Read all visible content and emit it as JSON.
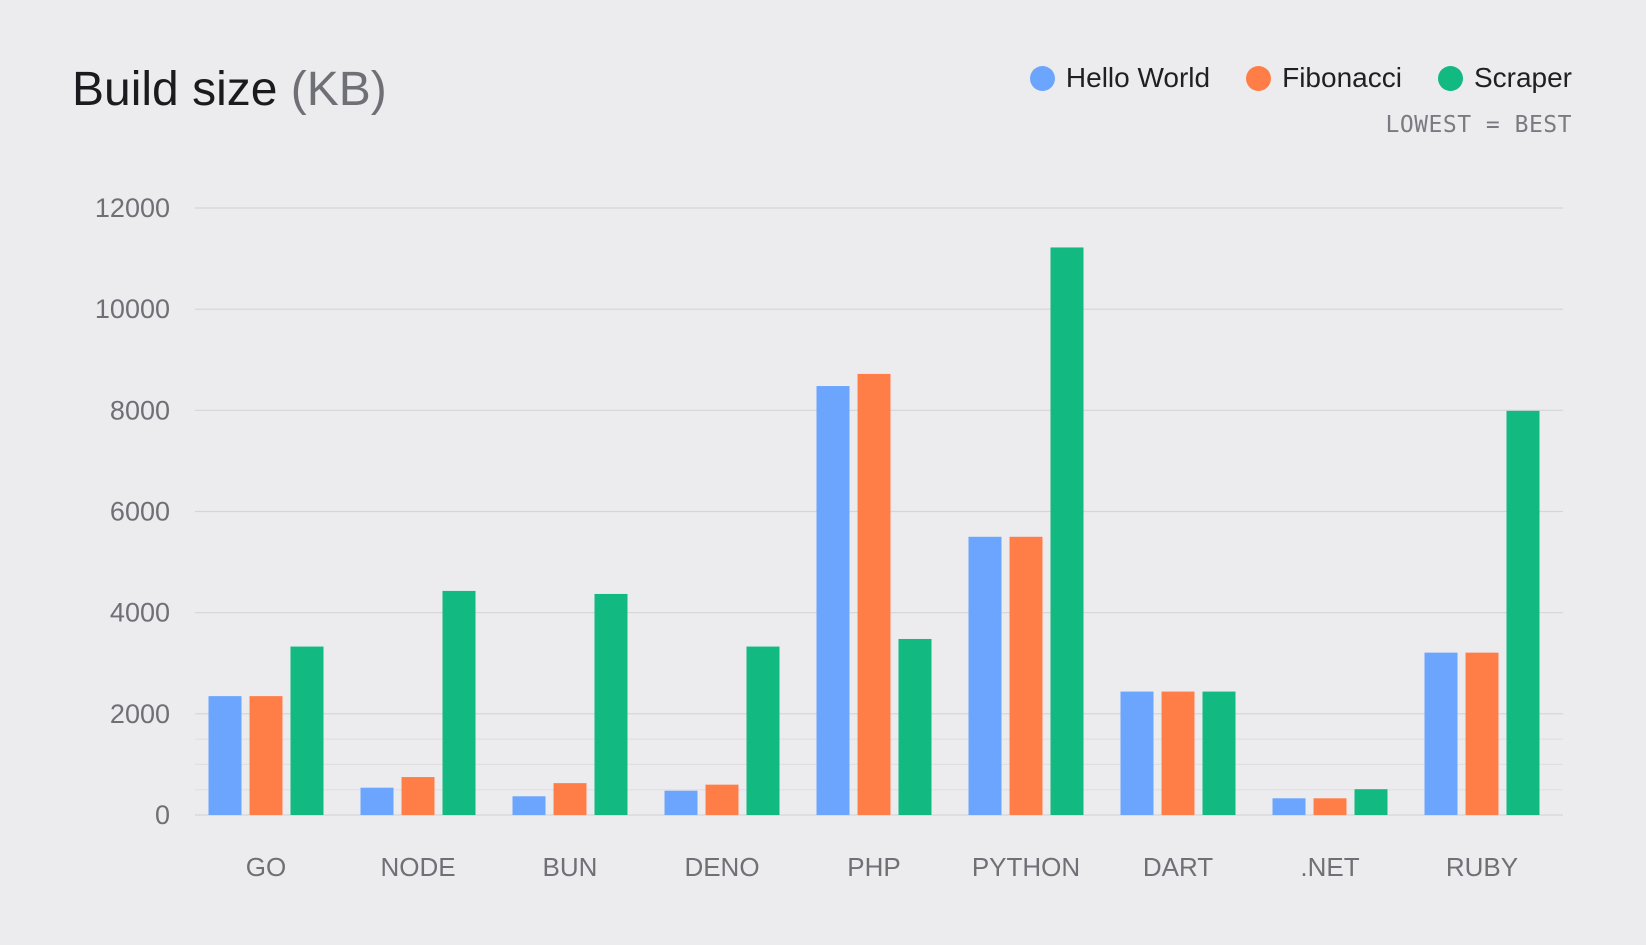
{
  "title_main": "Build size",
  "title_unit": "(KB)",
  "note": "LOWEST = BEST",
  "colors": {
    "Hello World": "#6ba5fd",
    "Fibonacci": "#ff7e48",
    "Scraper": "#12b981",
    "grid": "#d4d4d9",
    "tick_label": "#6f6f76",
    "category_label": "#6f6f76"
  },
  "chart_data": {
    "type": "bar",
    "title": "Build size (KB)",
    "xlabel": "",
    "ylabel": "",
    "ylim": [
      0,
      12000
    ],
    "yticks": [
      0,
      2000,
      4000,
      6000,
      8000,
      10000,
      12000
    ],
    "grid": true,
    "legend_position": "top-right",
    "categories": [
      "GO",
      "NODE",
      "BUN",
      "DENO",
      "PHP",
      "PYTHON",
      "DART",
      ".NET",
      "RUBY"
    ],
    "series": [
      {
        "name": "Hello World",
        "values": [
          2350,
          540,
          370,
          480,
          8480,
          5500,
          2440,
          330,
          3210
        ]
      },
      {
        "name": "Fibonacci",
        "values": [
          2350,
          750,
          630,
          600,
          8720,
          5500,
          2440,
          330,
          3210
        ]
      },
      {
        "name": "Scraper",
        "values": [
          3330,
          4430,
          4370,
          3330,
          3480,
          11220,
          2440,
          510,
          7990
        ]
      }
    ]
  }
}
